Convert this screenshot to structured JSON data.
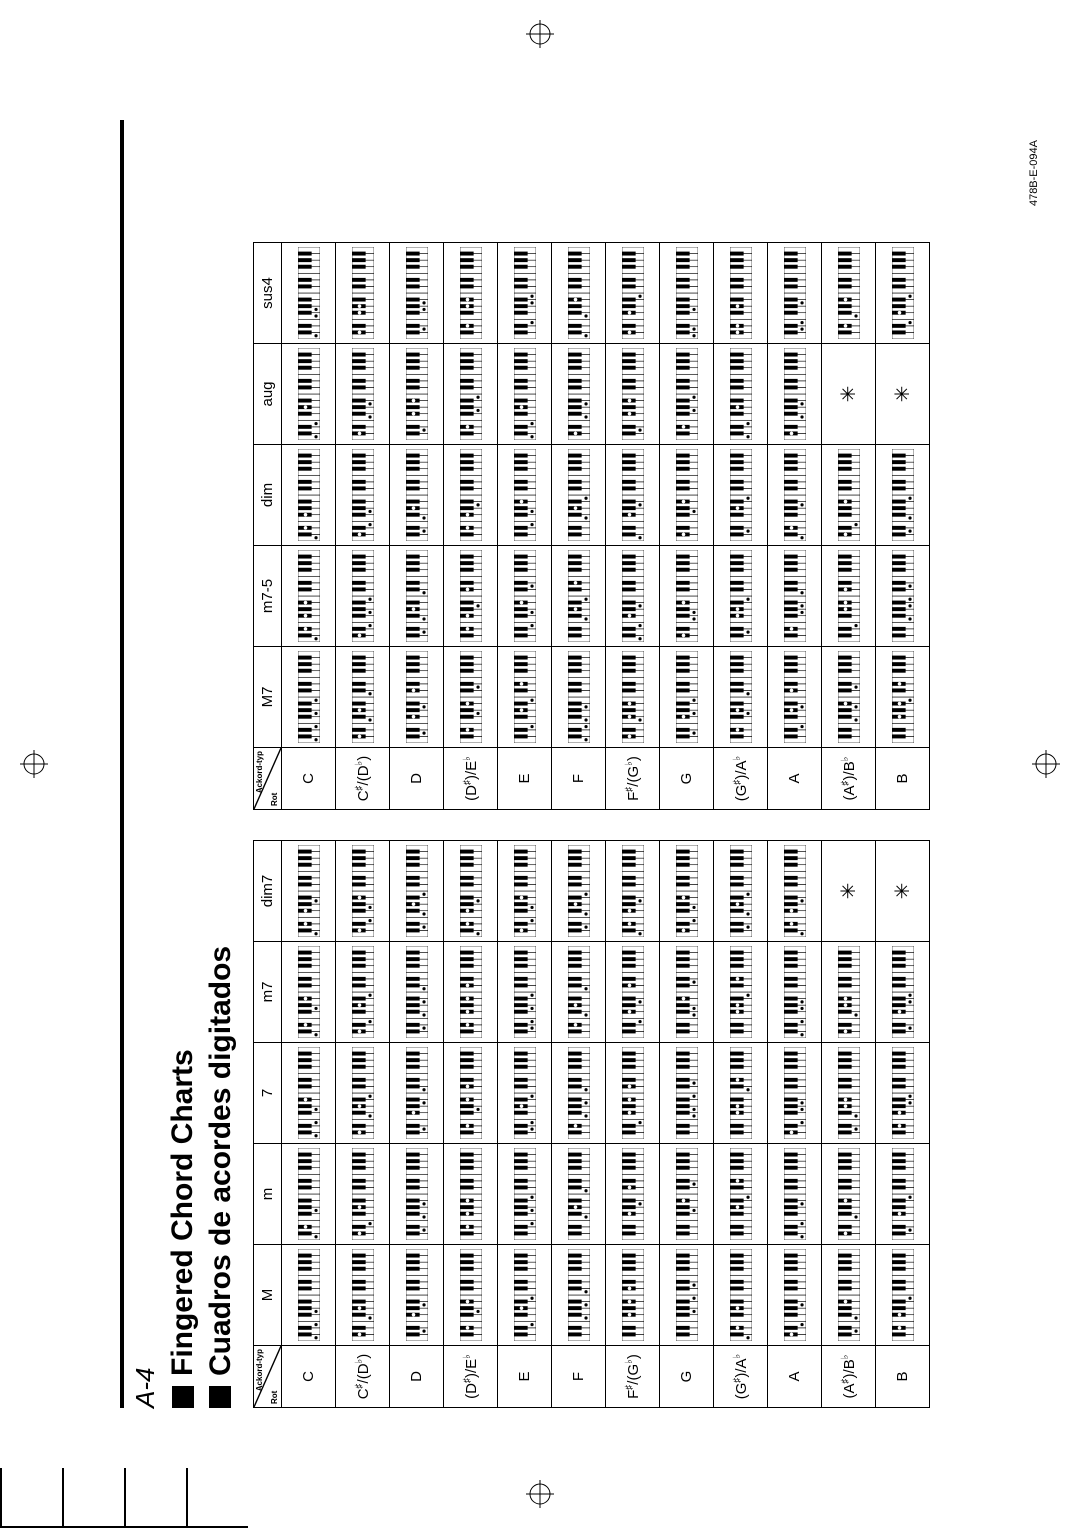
{
  "page_label": "A-4",
  "title_en": "Fingered Chord Charts",
  "title_es": "Cuadros de acordes digitados",
  "footer_code": "478B-E-094A",
  "header_corner": {
    "top": "Ackord-typ",
    "bottom": "Rot"
  },
  "roots": [
    "C",
    "C♯/(D♭)",
    "D",
    "(D♯)/E♭",
    "E",
    "F",
    "F♯/(G♭)",
    "G",
    "(G♯)/A♭",
    "A",
    "(A♯)/B♭",
    "B"
  ],
  "table1_cols": [
    "M",
    "m",
    "7",
    "m7",
    "dim7"
  ],
  "table2_cols": [
    "M7",
    "m7-5",
    "dim",
    "aug",
    "sus4"
  ],
  "keyboard": {
    "white_keys": 14,
    "black_positions": [
      0,
      1,
      3,
      4,
      5,
      7,
      8,
      10,
      11,
      12
    ],
    "dot_r": 1.6
  },
  "asterisk_symbol": "✳",
  "colors": {
    "line": "#000000",
    "bg": "#ffffff",
    "dot": "#000000"
  },
  "cells1": {
    "C": {
      "M": [
        [
          0,
          4,
          7
        ]
      ],
      "m": [
        [
          0,
          3,
          7
        ]
      ],
      "7": [
        [
          0,
          4,
          7,
          10
        ]
      ],
      "m7": [
        [
          0,
          3,
          7,
          10
        ]
      ],
      "dim7": [
        [
          0,
          3,
          6,
          9
        ]
      ]
    },
    "C♯/(D♭)": {
      "M": [
        [
          1,
          5,
          8
        ]
      ],
      "m": [
        [
          1,
          4,
          8
        ]
      ],
      "7": [
        [
          1,
          5,
          8,
          11
        ]
      ],
      "m7": [
        [
          1,
          4,
          8,
          11
        ]
      ],
      "dim7": [
        [
          1,
          4,
          7,
          10
        ]
      ]
    },
    "D": {
      "M": [
        [
          2,
          6,
          9
        ]
      ],
      "m": [
        [
          2,
          5,
          9
        ]
      ],
      "7": [
        [
          2,
          6,
          9,
          12
        ]
      ],
      "m7": [
        [
          2,
          5,
          9,
          12
        ]
      ],
      "dim7": [
        [
          2,
          5,
          8,
          11
        ]
      ]
    },
    "(D♯)/E♭": {
      "M": [
        [
          3,
          7,
          10
        ]
      ],
      "m": [
        [
          3,
          6,
          10
        ]
      ],
      "7": [
        [
          3,
          7,
          10,
          13
        ]
      ],
      "m7": [
        [
          3,
          6,
          10,
          13
        ]
      ],
      "dim7": [
        [
          0,
          3,
          6,
          9
        ]
      ]
    },
    "E": {
      "M": [
        [
          4,
          8,
          11
        ]
      ],
      "m": [
        [
          4,
          7,
          11
        ]
      ],
      "7": [
        [
          2,
          4,
          8,
          11
        ]
      ],
      "m7": [
        [
          2,
          4,
          7,
          11
        ]
      ],
      "dim7": [
        [
          1,
          4,
          7,
          10
        ]
      ]
    },
    "F": {
      "M": [
        [
          5,
          9,
          12
        ]
      ],
      "m": [
        [
          5,
          8,
          12
        ]
      ],
      "7": [
        [
          3,
          5,
          9,
          12
        ]
      ],
      "m7": [
        [
          3,
          5,
          8,
          12
        ]
      ],
      "dim7": [
        [
          2,
          5,
          8,
          11
        ]
      ]
    },
    "F♯/(G♭)": {
      "M": [
        [
          6,
          10,
          13
        ]
      ],
      "m": [
        [
          6,
          9,
          13
        ]
      ],
      "7": [
        [
          4,
          6,
          10,
          13
        ]
      ],
      "m7": [
        [
          4,
          6,
          9,
          13
        ]
      ],
      "dim7": [
        [
          0,
          3,
          6,
          9
        ]
      ]
    },
    "G": {
      "M": [
        [
          7,
          11,
          14
        ]
      ],
      "m": [
        [
          7,
          10,
          14
        ]
      ],
      "7": [
        [
          5,
          7,
          11,
          14
        ]
      ],
      "m7": [
        [
          5,
          7,
          10,
          14
        ]
      ],
      "dim7": [
        [
          1,
          4,
          7,
          10
        ]
      ]
    },
    "(G♯)/A♭": {
      "M": [
        [
          0,
          3,
          8
        ]
      ],
      "m": [
        [
          8,
          11,
          15
        ]
      ],
      "7": [
        [
          6,
          8,
          12,
          15
        ]
      ],
      "m7": [
        [
          6,
          8,
          11,
          15
        ]
      ],
      "dim7": [
        [
          2,
          5,
          8,
          11
        ]
      ]
    },
    "A": {
      "M": [
        [
          1,
          4,
          9
        ]
      ],
      "m": [
        [
          0,
          4,
          9
        ]
      ],
      "7": [
        [
          1,
          4,
          7,
          9
        ]
      ],
      "m7": [
        [
          0,
          4,
          7,
          9
        ]
      ],
      "dim7": [
        [
          0,
          3,
          6,
          9
        ]
      ]
    },
    "(A♯)/B♭": {
      "M": [
        [
          2,
          5,
          10
        ]
      ],
      "m": [
        [
          1,
          5,
          10
        ]
      ],
      "7": [
        [
          2,
          5,
          8,
          10
        ]
      ],
      "m7": [
        [
          1,
          5,
          8,
          10
        ]
      ],
      "dim7": "ast"
    },
    "B": {
      "M": [
        [
          3,
          6,
          11
        ]
      ],
      "m": [
        [
          2,
          6,
          11
        ]
      ],
      "7": [
        [
          3,
          6,
          9,
          11
        ]
      ],
      "m7": [
        [
          2,
          6,
          9,
          11
        ]
      ],
      "dim7": "ast"
    }
  },
  "cells2": {
    "C": {
      "M7": [
        [
          0,
          4,
          7,
          11
        ]
      ],
      "m7-5": [
        [
          0,
          3,
          6,
          10
        ]
      ],
      "dim": [
        [
          0,
          3,
          6
        ]
      ],
      "aug": [
        [
          0,
          4,
          8
        ]
      ],
      "sus4": [
        [
          0,
          5,
          7
        ]
      ]
    },
    "C♯/(D♭)": {
      "M7": [
        [
          1,
          5,
          8,
          12
        ]
      ],
      "m7-5": [
        [
          1,
          4,
          7,
          11
        ]
      ],
      "dim": [
        [
          1,
          4,
          7
        ]
      ],
      "aug": [
        [
          1,
          5,
          9
        ]
      ],
      "sus4": [
        [
          1,
          6,
          8
        ]
      ]
    },
    "D": {
      "M7": [
        [
          2,
          6,
          9,
          13
        ]
      ],
      "m7-5": [
        [
          2,
          5,
          8,
          12
        ]
      ],
      "dim": [
        [
          2,
          5,
          8
        ]
      ],
      "aug": [
        [
          2,
          6,
          10
        ]
      ],
      "sus4": [
        [
          2,
          7,
          9
        ]
      ]
    },
    "(D♯)/E♭": {
      "M7": [
        [
          3,
          7,
          10,
          14
        ]
      ],
      "m7-5": [
        [
          3,
          6,
          9,
          13
        ]
      ],
      "dim": [
        [
          3,
          6,
          9
        ]
      ],
      "aug": [
        [
          3,
          7,
          11
        ]
      ],
      "sus4": [
        [
          3,
          8,
          10
        ]
      ]
    },
    "E": {
      "M7": [
        [
          4,
          8,
          11,
          15
        ]
      ],
      "m7-5": [
        [
          4,
          7,
          10,
          14
        ]
      ],
      "dim": [
        [
          4,
          7,
          10
        ]
      ],
      "aug": [
        [
          0,
          4,
          8
        ]
      ],
      "sus4": [
        [
          4,
          9,
          11
        ]
      ]
    },
    "F": {
      "M7": [
        [
          0,
          4,
          5,
          9
        ]
      ],
      "m7-5": [
        [
          5,
          8,
          11,
          15
        ]
      ],
      "dim": [
        [
          5,
          8,
          11
        ]
      ],
      "aug": [
        [
          1,
          5,
          9
        ]
      ],
      "sus4": [
        [
          0,
          5,
          10
        ]
      ]
    },
    "F♯/(G♭)": {
      "M7": [
        [
          1,
          5,
          6,
          10
        ]
      ],
      "m7-5": [
        [
          0,
          4,
          6,
          9
        ]
      ],
      "dim": [
        [
          0,
          6,
          9
        ]
      ],
      "aug": [
        [
          2,
          6,
          10
        ]
      ],
      "sus4": [
        [
          1,
          6,
          11
        ]
      ]
    },
    "G": {
      "M7": [
        [
          2,
          6,
          7,
          11
        ]
      ],
      "m7-5": [
        [
          1,
          5,
          7,
          10
        ]
      ],
      "dim": [
        [
          1,
          7,
          10
        ]
      ],
      "aug": [
        [
          3,
          7,
          11
        ]
      ],
      "sus4": [
        [
          0,
          2,
          7
        ]
      ]
    },
    "(G♯)/A♭": {
      "M7": [
        [
          3,
          7,
          8,
          12
        ]
      ],
      "m7-5": [
        [
          2,
          6,
          8,
          11
        ]
      ],
      "dim": [
        [
          2,
          8,
          11
        ]
      ],
      "aug": [
        [
          0,
          4,
          8
        ]
      ],
      "sus4": [
        [
          1,
          3,
          8
        ]
      ]
    },
    "A": {
      "M7": [
        [
          4,
          8,
          9,
          13
        ]
      ],
      "m7-5": [
        [
          3,
          7,
          9,
          12
        ]
      ],
      "dim": [
        [
          0,
          3,
          9
        ]
      ],
      "aug": [
        [
          1,
          5,
          9
        ]
      ],
      "sus4": [
        [
          2,
          4,
          9
        ]
      ]
    },
    "(A♯)/B♭": {
      "M7": [
        [
          5,
          9,
          10,
          14
        ]
      ],
      "m7-5": [
        [
          4,
          8,
          10,
          13
        ]
      ],
      "dim": [
        [
          1,
          4,
          10
        ]
      ],
      "aug": "ast",
      "sus4": [
        [
          3,
          5,
          10
        ]
      ]
    },
    "B": {
      "M7": [
        [
          6,
          10,
          11,
          15
        ]
      ],
      "m7-5": [
        [
          5,
          9,
          11,
          14
        ]
      ],
      "dim": [
        [
          2,
          5,
          11
        ]
      ],
      "aug": "ast",
      "sus4": [
        [
          4,
          6,
          11
        ]
      ]
    }
  }
}
